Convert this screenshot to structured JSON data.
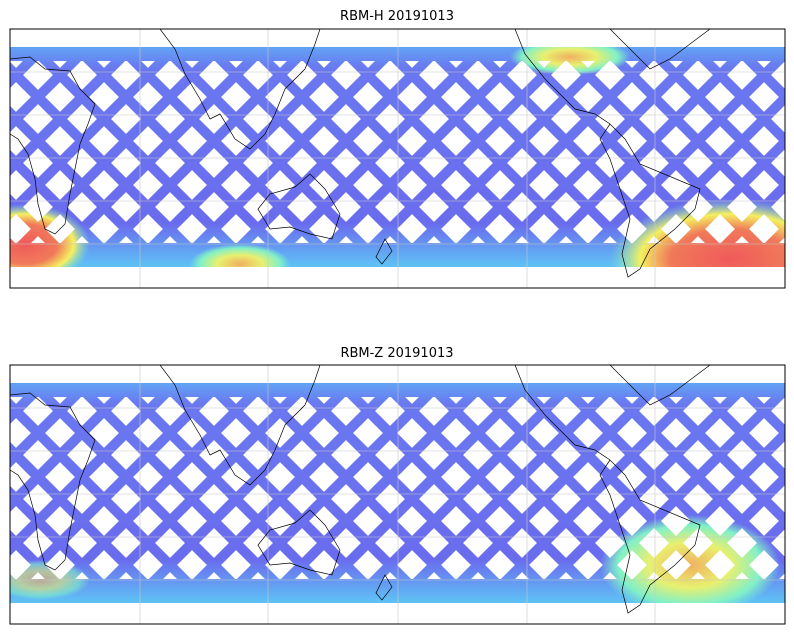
{
  "panels": [
    {
      "title": "RBM-H 20191013"
    },
    {
      "title": "RBM-Z 20191013"
    }
  ]
}
